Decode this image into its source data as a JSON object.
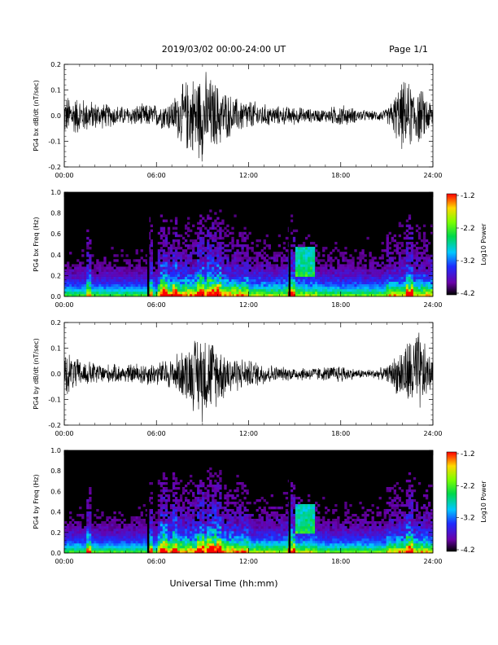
{
  "header": {
    "title": "2019/03/02  00:00-24:00 UT",
    "page": "Page 1/1"
  },
  "footer": {
    "xlabel": "Universal Time (hh:mm)"
  },
  "chart_data": [
    {
      "type": "line",
      "ylabel": "PG4 bx dB/dt (nT/sec)",
      "xlim": [
        0,
        24
      ],
      "ylim": [
        -0.2,
        0.2
      ],
      "x_ticks": [
        "00:00",
        "06:00",
        "12:00",
        "18:00",
        "24:00"
      ],
      "y_ticks": [
        "-0.2",
        "-0.1",
        "0.0",
        "0.1",
        "0.2"
      ],
      "envelope": {
        "hours": [
          0,
          1,
          2,
          3,
          4,
          5,
          6,
          7,
          8,
          9,
          10,
          11,
          12,
          13,
          14,
          15,
          16,
          17,
          18,
          19,
          20,
          21,
          22,
          23,
          24
        ],
        "amplitude": [
          0.09,
          0.08,
          0.06,
          0.05,
          0.04,
          0.05,
          0.05,
          0.07,
          0.16,
          0.2,
          0.14,
          0.08,
          0.07,
          0.05,
          0.04,
          0.04,
          0.03,
          0.03,
          0.05,
          0.03,
          0.02,
          0.03,
          0.15,
          0.13,
          0.06
        ]
      }
    },
    {
      "type": "heatmap",
      "ylabel": "PG4 bx Freq (Hz)",
      "xlim": [
        0,
        24
      ],
      "ylim": [
        0.0,
        1.0
      ],
      "x_ticks": [
        "00:00",
        "06:00",
        "12:00",
        "18:00",
        "24:00"
      ],
      "y_ticks": [
        "0.0",
        "0.2",
        "0.4",
        "0.6",
        "0.8",
        "1.0"
      ],
      "colorbar": {
        "label": "Log10 Power",
        "range": [
          -4.2,
          -1.2
        ],
        "ticks": [
          "-1.2",
          "-2.2",
          "-3.2",
          "-4.2"
        ]
      }
    },
    {
      "type": "line",
      "ylabel": "PG4 by dB/dt (nT/sec)",
      "xlim": [
        0,
        24
      ],
      "ylim": [
        -0.2,
        0.2
      ],
      "x_ticks": [
        "00:00",
        "06:00",
        "12:00",
        "18:00",
        "24:00"
      ],
      "y_ticks": [
        "-0.2",
        "-0.1",
        "0.0",
        "0.1",
        "0.2"
      ],
      "envelope": {
        "hours": [
          0,
          1,
          2,
          3,
          4,
          5,
          6,
          7,
          8,
          9,
          10,
          11,
          12,
          13,
          14,
          15,
          16,
          17,
          18,
          19,
          20,
          21,
          22,
          23,
          24
        ],
        "amplitude": [
          0.1,
          0.06,
          0.05,
          0.04,
          0.04,
          0.05,
          0.05,
          0.07,
          0.12,
          0.2,
          0.13,
          0.08,
          0.06,
          0.05,
          0.03,
          0.03,
          0.03,
          0.03,
          0.04,
          0.02,
          0.02,
          0.03,
          0.12,
          0.2,
          0.05
        ]
      }
    },
    {
      "type": "heatmap",
      "ylabel": "PG4 by Freq (Hz)",
      "xlim": [
        0,
        24
      ],
      "ylim": [
        0.0,
        1.0
      ],
      "x_ticks": [
        "00:00",
        "06:00",
        "12:00",
        "18:00",
        "24:00"
      ],
      "y_ticks": [
        "0.0",
        "0.2",
        "0.4",
        "0.6",
        "0.8",
        "1.0"
      ],
      "colorbar": {
        "label": "Log10 Power",
        "range": [
          -4.2,
          -1.2
        ],
        "ticks": [
          "-1.2",
          "-2.2",
          "-3.2",
          "-4.2"
        ]
      }
    }
  ]
}
